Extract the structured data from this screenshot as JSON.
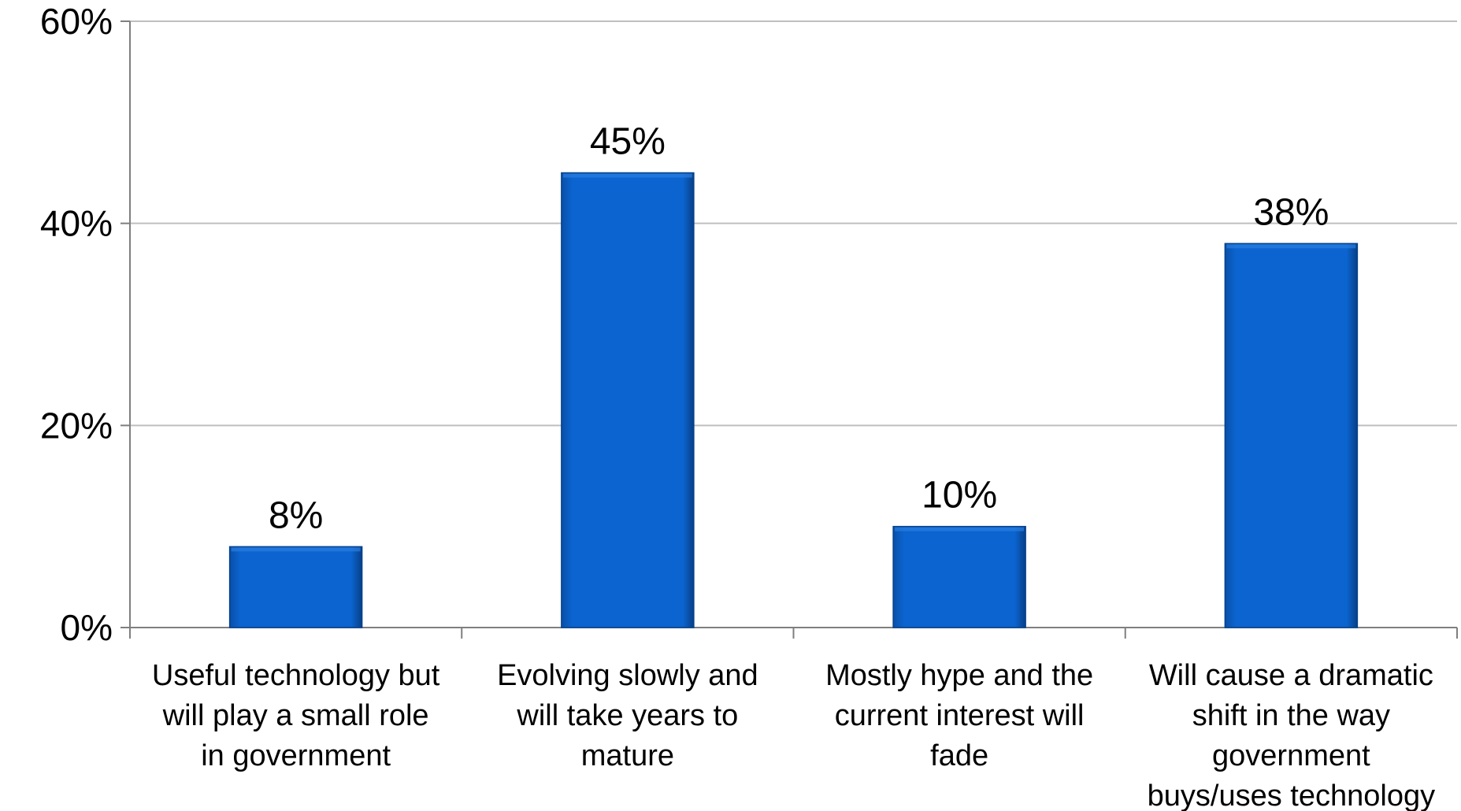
{
  "chart_data": {
    "type": "bar",
    "categories": [
      [
        "Useful technology but",
        "will play a small role",
        "in government"
      ],
      [
        "Evolving slowly and",
        "will take years to",
        "mature"
      ],
      [
        "Mostly hype and the",
        "current interest will",
        "fade"
      ],
      [
        "Will cause a dramatic",
        "shift in the way",
        "government",
        "buys/uses technology"
      ]
    ],
    "values": [
      8,
      45,
      10,
      38
    ],
    "data_labels": [
      "8%",
      "45%",
      "10%",
      "38%"
    ],
    "yticks": [
      "0%",
      "20%",
      "40%",
      "60%"
    ],
    "ytick_values": [
      0,
      20,
      40,
      60
    ],
    "ylim": [
      0,
      60
    ],
    "grid": true,
    "title": "",
    "xlabel": "",
    "ylabel": "",
    "colors": {
      "bar": "#0A5FC4",
      "bar_edge": "#06418C",
      "grid": "#BFBFBF",
      "axis": "#7F7F7F",
      "text": "#000000"
    }
  }
}
